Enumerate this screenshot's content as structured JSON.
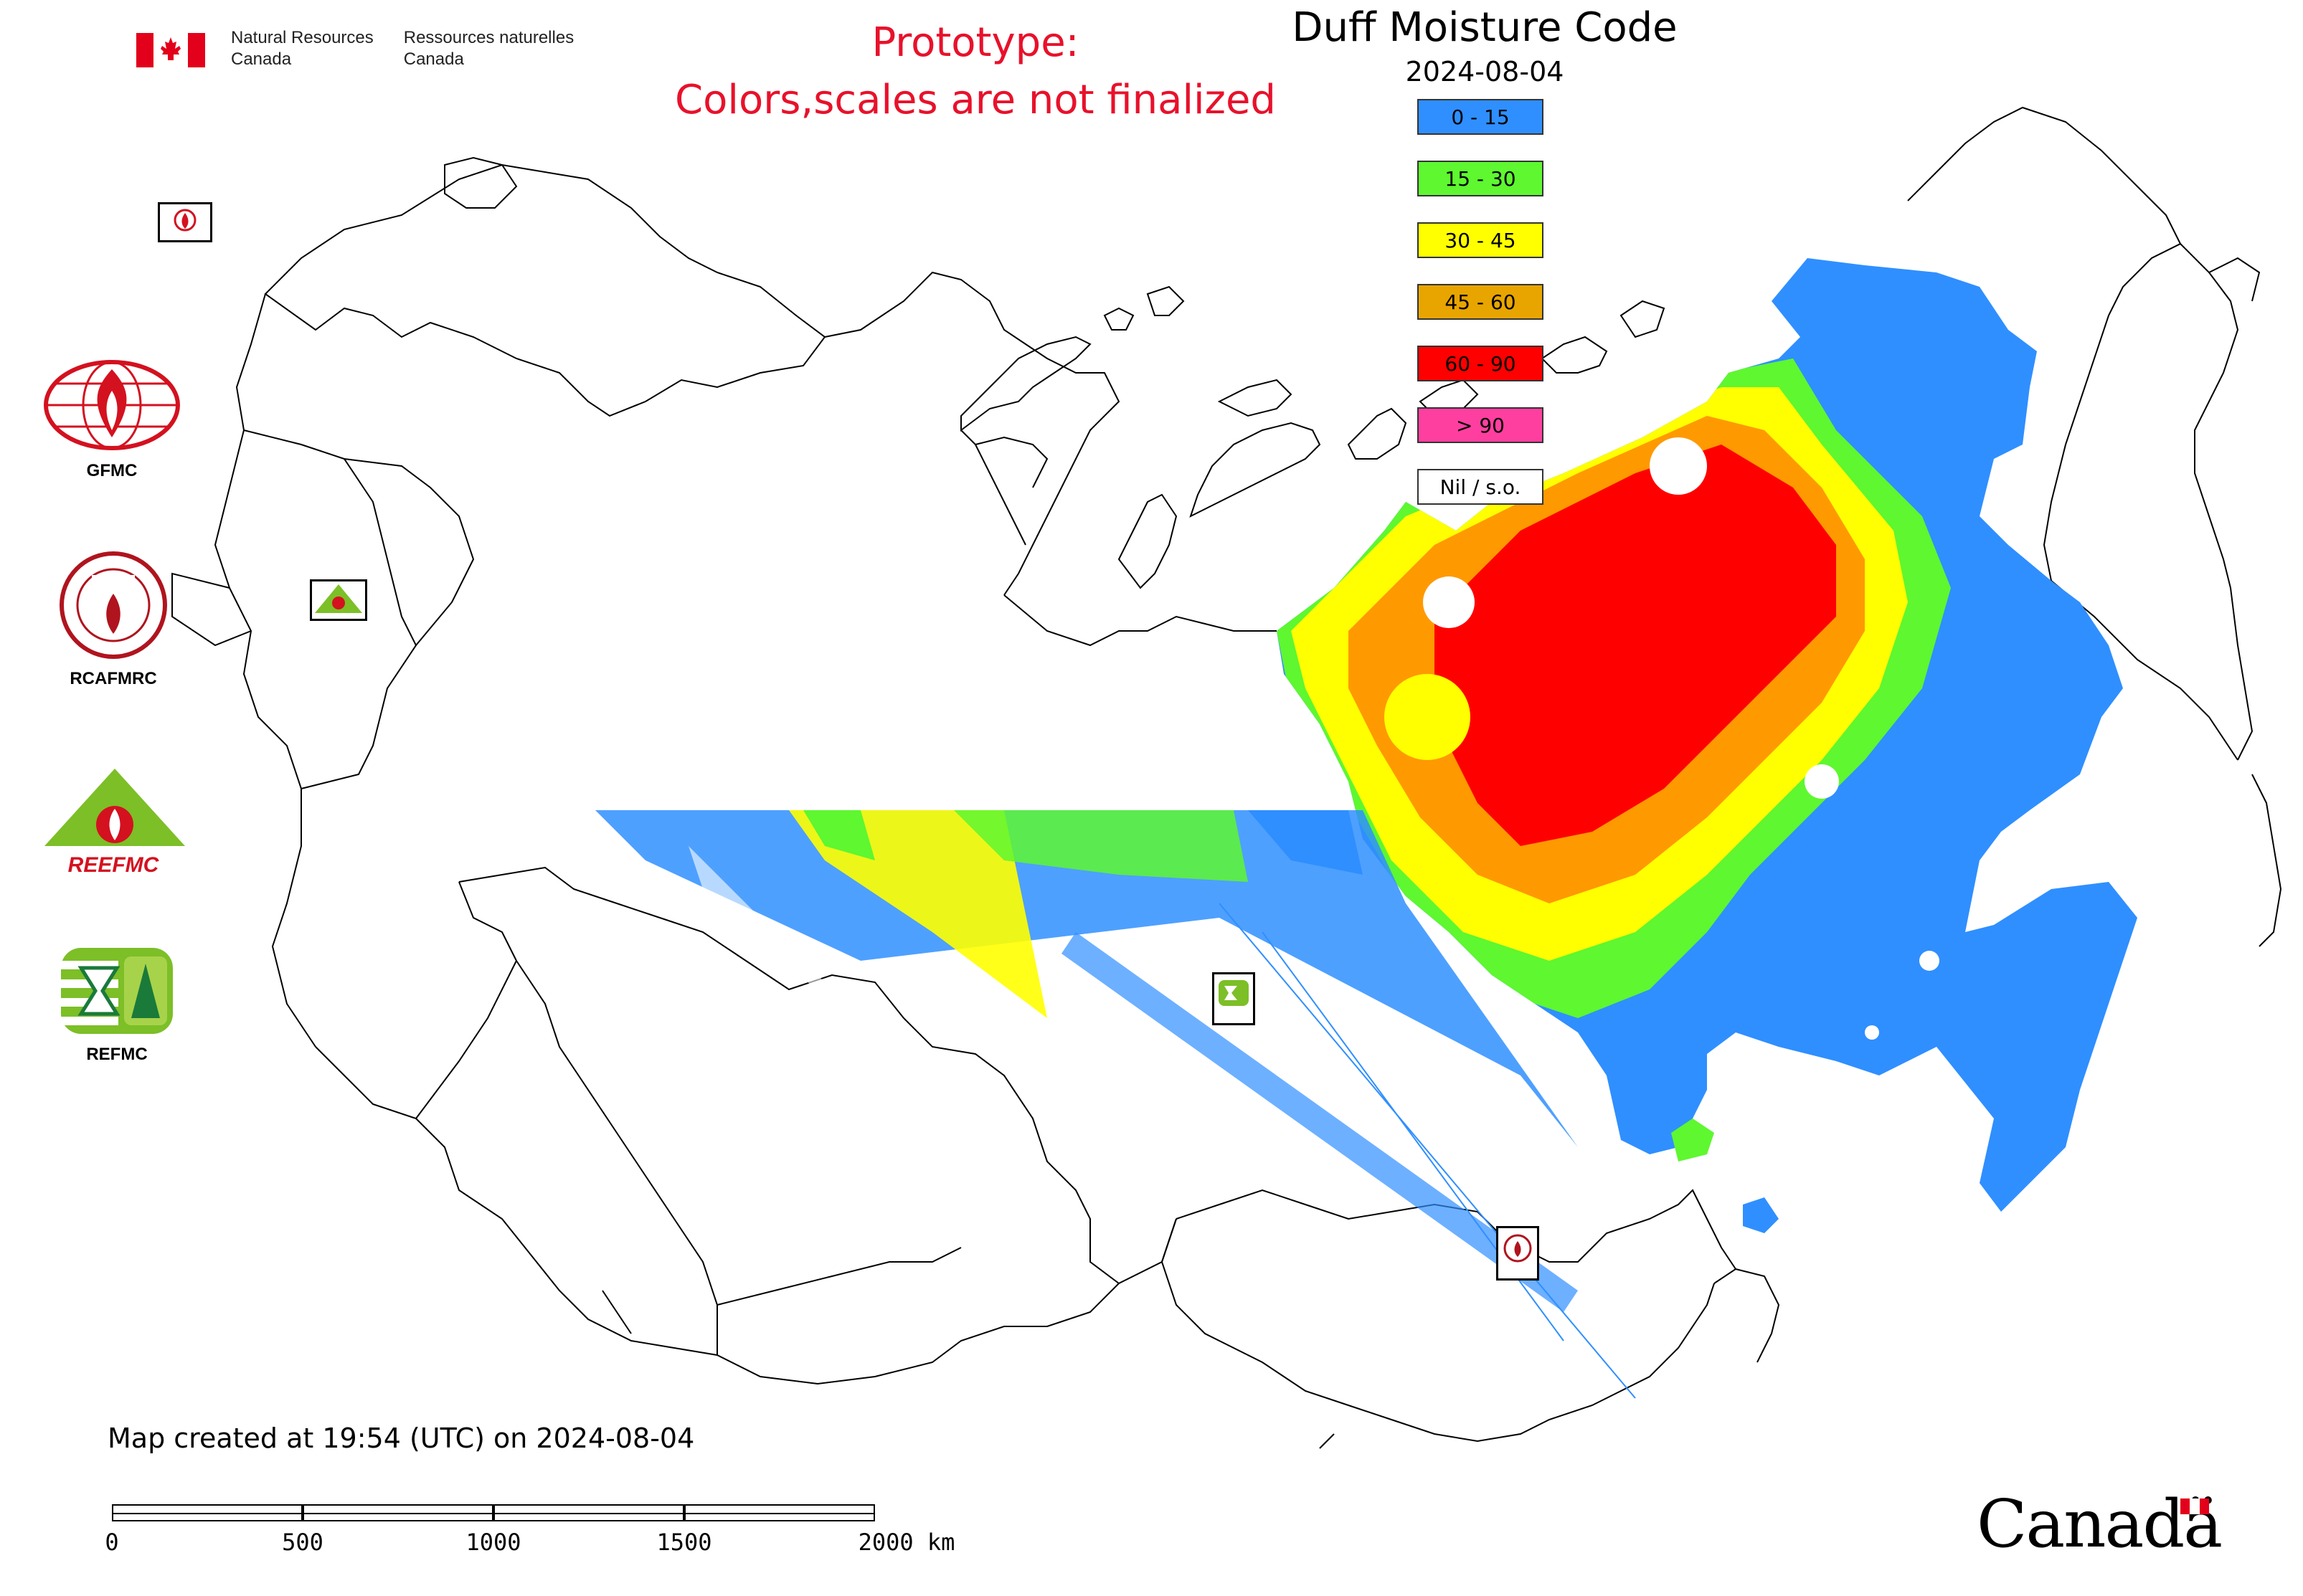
{
  "header": {
    "agency_en_line1": "Natural Resources",
    "agency_en_line2": "Canada",
    "agency_fr_line1": "Ressources naturelles",
    "agency_fr_line2": "Canada"
  },
  "notice": {
    "line1": "Prototype:",
    "line2": "Colors,scales are not finalized"
  },
  "map": {
    "title": "Duff Moisture Code",
    "date": "2024-08-04",
    "created": "Map created at 19:54 (UTC) on 2024-08-04"
  },
  "legend": [
    {
      "label": "0 - 15",
      "color": "#2f8fff"
    },
    {
      "label": "15 - 30",
      "color": "#5ef730"
    },
    {
      "label": "30 - 45",
      "color": "#ffff00"
    },
    {
      "label": "45 - 60",
      "color": "#e8a500"
    },
    {
      "label": "60 - 90",
      "color": "#ff0000"
    },
    {
      "label": "> 90",
      "color": "#ff3fa0"
    },
    {
      "label": "Nil / s.o.",
      "color": "#ffffff"
    }
  ],
  "partners": [
    {
      "label": "GFMC",
      "icon": "gfmc-logo-icon"
    },
    {
      "label": "RCAFMRC",
      "icon": "rcafmrc-logo-icon"
    },
    {
      "label": "",
      "icon": "reefmc-logo-icon",
      "wordmark": "REEFMC"
    },
    {
      "label": "REFMC",
      "icon": "refmc-logo-icon"
    }
  ],
  "scale": {
    "ticks": [
      "0",
      "500",
      "1000",
      "1500"
    ],
    "last": "2000 km"
  },
  "footer": {
    "wordmark": "Canadä"
  }
}
